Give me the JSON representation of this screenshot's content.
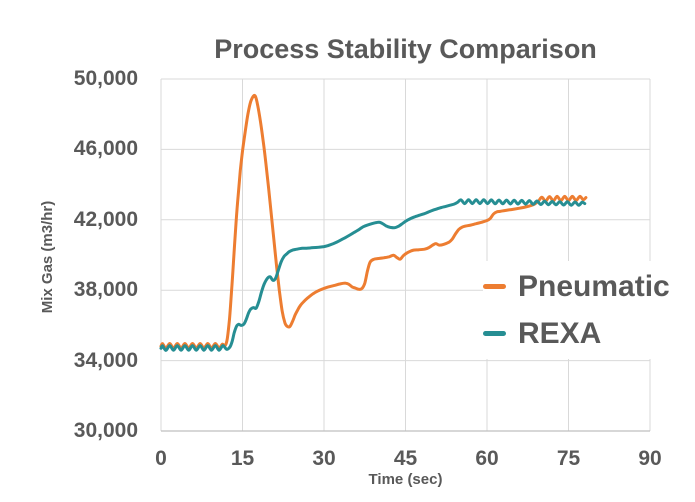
{
  "colors": {
    "background": "#FFFFFF",
    "text": "#595959",
    "grid": "#D9D9D9",
    "axis": "#BFBFBF",
    "pneumatic": "#ED7D31",
    "rexa": "#268E93"
  },
  "chart_data": {
    "type": "line",
    "title": "Process Stability Comparison",
    "xlabel": "Time (sec)",
    "ylabel": "Mix Gas (m3/hr)",
    "xlim": [
      0,
      90
    ],
    "ylim": [
      30000,
      50000
    ],
    "grid": true,
    "legend_position": "right-middle-inside",
    "x_ticks": [
      0,
      15,
      30,
      45,
      60,
      75,
      90
    ],
    "x_tick_labels": [
      "0",
      "15",
      "30",
      "45",
      "60",
      "75",
      "90"
    ],
    "y_ticks": [
      30000,
      34000,
      38000,
      42000,
      46000,
      50000
    ],
    "y_tick_labels": [
      "30,000",
      "34,000",
      "38,000",
      "42,000",
      "46,000",
      "50,000"
    ],
    "series": [
      {
        "name": "Pneumatic",
        "color": "#ED7D31",
        "points": [
          [
            0,
            34820
          ],
          [
            0.3,
            34960
          ],
          [
            0.9,
            34700
          ],
          [
            1.6,
            34970
          ],
          [
            2.3,
            34710
          ],
          [
            3,
            34970
          ],
          [
            3.7,
            34710
          ],
          [
            4.4,
            34970
          ],
          [
            5.1,
            34710
          ],
          [
            5.8,
            34970
          ],
          [
            6.5,
            34710
          ],
          [
            7.2,
            34970
          ],
          [
            7.9,
            34710
          ],
          [
            8.6,
            34970
          ],
          [
            9.3,
            34710
          ],
          [
            10,
            34970
          ],
          [
            10.7,
            34710
          ],
          [
            11.3,
            34930
          ],
          [
            11.8,
            34850
          ],
          [
            12.2,
            35250
          ],
          [
            12.6,
            36350
          ],
          [
            13,
            38000
          ],
          [
            13.4,
            39900
          ],
          [
            13.8,
            41800
          ],
          [
            14.2,
            43400
          ],
          [
            14.6,
            44800
          ],
          [
            15,
            45900
          ],
          [
            15.5,
            47000
          ],
          [
            16,
            48000
          ],
          [
            16.5,
            48700
          ],
          [
            17,
            49030
          ],
          [
            17.4,
            49000
          ],
          [
            17.8,
            48500
          ],
          [
            18.3,
            47600
          ],
          [
            18.8,
            46500
          ],
          [
            19.3,
            45200
          ],
          [
            19.8,
            43800
          ],
          [
            20.3,
            42300
          ],
          [
            20.8,
            40800
          ],
          [
            21.3,
            39300
          ],
          [
            21.8,
            37950
          ],
          [
            22.3,
            36800
          ],
          [
            22.8,
            36150
          ],
          [
            23.2,
            35950
          ],
          [
            23.7,
            35930
          ],
          [
            24.2,
            36220
          ],
          [
            24.7,
            36600
          ],
          [
            25.2,
            36900
          ],
          [
            25.7,
            37150
          ],
          [
            26.2,
            37330
          ],
          [
            27,
            37560
          ],
          [
            28,
            37800
          ],
          [
            29,
            37980
          ],
          [
            30,
            38100
          ],
          [
            31,
            38200
          ],
          [
            32,
            38280
          ],
          [
            33,
            38360
          ],
          [
            34,
            38400
          ],
          [
            34.6,
            38330
          ],
          [
            35.2,
            38180
          ],
          [
            35.8,
            38120
          ],
          [
            36.4,
            38050
          ],
          [
            37,
            38100
          ],
          [
            37.5,
            38400
          ],
          [
            38,
            39100
          ],
          [
            38.5,
            39600
          ],
          [
            39.2,
            39760
          ],
          [
            40,
            39800
          ],
          [
            41,
            39840
          ],
          [
            42,
            39900
          ],
          [
            42.8,
            39990
          ],
          [
            43.4,
            39860
          ],
          [
            44,
            39760
          ],
          [
            44.6,
            39960
          ],
          [
            45.2,
            40100
          ],
          [
            45.8,
            40200
          ],
          [
            46.5,
            40280
          ],
          [
            47.5,
            40300
          ],
          [
            48.5,
            40330
          ],
          [
            49.3,
            40420
          ],
          [
            50,
            40560
          ],
          [
            50.6,
            40650
          ],
          [
            51.2,
            40560
          ],
          [
            52,
            40600
          ],
          [
            53,
            40730
          ],
          [
            53.6,
            40900
          ],
          [
            54.2,
            41200
          ],
          [
            54.8,
            41450
          ],
          [
            55.4,
            41580
          ],
          [
            56,
            41640
          ],
          [
            57,
            41700
          ],
          [
            58,
            41780
          ],
          [
            59,
            41860
          ],
          [
            60,
            41960
          ],
          [
            60.6,
            42080
          ],
          [
            61.2,
            42330
          ],
          [
            61.8,
            42450
          ],
          [
            62.4,
            42480
          ],
          [
            63.2,
            42520
          ],
          [
            64,
            42560
          ],
          [
            65,
            42610
          ],
          [
            66,
            42660
          ],
          [
            67,
            42720
          ],
          [
            68,
            42800
          ],
          [
            68.8,
            42900
          ],
          [
            69.5,
            43080
          ],
          [
            70.1,
            43280
          ],
          [
            70.8,
            43060
          ],
          [
            71.5,
            43320
          ],
          [
            72.2,
            43080
          ],
          [
            72.9,
            43330
          ],
          [
            73.6,
            43090
          ],
          [
            74.3,
            43330
          ],
          [
            75,
            43090
          ],
          [
            75.7,
            43330
          ],
          [
            76.4,
            43100
          ],
          [
            77.1,
            43330
          ],
          [
            77.7,
            43140
          ],
          [
            78.2,
            43260
          ]
        ]
      },
      {
        "name": "REXA",
        "color": "#268E93",
        "points": [
          [
            0,
            34700
          ],
          [
            0.3,
            34840
          ],
          [
            0.9,
            34580
          ],
          [
            1.6,
            34850
          ],
          [
            2.3,
            34590
          ],
          [
            3,
            34850
          ],
          [
            3.7,
            34590
          ],
          [
            4.4,
            34850
          ],
          [
            5.1,
            34590
          ],
          [
            5.8,
            34850
          ],
          [
            6.5,
            34590
          ],
          [
            7.2,
            34850
          ],
          [
            7.9,
            34590
          ],
          [
            8.6,
            34850
          ],
          [
            9.3,
            34590
          ],
          [
            10,
            34850
          ],
          [
            10.7,
            34590
          ],
          [
            11.4,
            34850
          ],
          [
            12.1,
            34640
          ],
          [
            12.7,
            34780
          ],
          [
            13.1,
            35100
          ],
          [
            13.5,
            35600
          ],
          [
            13.9,
            35950
          ],
          [
            14.3,
            36060
          ],
          [
            14.8,
            36000
          ],
          [
            15.3,
            36090
          ],
          [
            15.7,
            36350
          ],
          [
            16.1,
            36700
          ],
          [
            16.5,
            36920
          ],
          [
            17,
            37010
          ],
          [
            17.5,
            36980
          ],
          [
            18,
            37350
          ],
          [
            18.5,
            37900
          ],
          [
            19,
            38350
          ],
          [
            19.6,
            38680
          ],
          [
            20.1,
            38760
          ],
          [
            20.6,
            38560
          ],
          [
            21.1,
            38680
          ],
          [
            21.6,
            39150
          ],
          [
            22.1,
            39600
          ],
          [
            22.6,
            39900
          ],
          [
            23.1,
            40050
          ],
          [
            23.6,
            40190
          ],
          [
            24.3,
            40290
          ],
          [
            25,
            40330
          ],
          [
            26,
            40380
          ],
          [
            27,
            40390
          ],
          [
            28,
            40420
          ],
          [
            29,
            40440
          ],
          [
            30,
            40480
          ],
          [
            30.8,
            40540
          ],
          [
            31.6,
            40630
          ],
          [
            32.4,
            40740
          ],
          [
            33.2,
            40870
          ],
          [
            34,
            41000
          ],
          [
            34.8,
            41140
          ],
          [
            35.6,
            41290
          ],
          [
            36.4,
            41440
          ],
          [
            37.2,
            41600
          ],
          [
            38,
            41700
          ],
          [
            38.8,
            41780
          ],
          [
            39.6,
            41840
          ],
          [
            40.2,
            41860
          ],
          [
            40.8,
            41780
          ],
          [
            41.5,
            41640
          ],
          [
            42.2,
            41570
          ],
          [
            43,
            41550
          ],
          [
            43.8,
            41650
          ],
          [
            44.5,
            41800
          ],
          [
            45.2,
            41950
          ],
          [
            46,
            42080
          ],
          [
            46.8,
            42180
          ],
          [
            47.6,
            42260
          ],
          [
            48.4,
            42340
          ],
          [
            49.2,
            42440
          ],
          [
            50,
            42540
          ],
          [
            50.8,
            42620
          ],
          [
            51.6,
            42700
          ],
          [
            52.4,
            42760
          ],
          [
            53.2,
            42830
          ],
          [
            54,
            42900
          ],
          [
            54.6,
            43000
          ],
          [
            55.2,
            43130
          ],
          [
            55.9,
            42920
          ],
          [
            56.6,
            43140
          ],
          [
            57.3,
            42920
          ],
          [
            58,
            43140
          ],
          [
            58.7,
            42920
          ],
          [
            59.4,
            43140
          ],
          [
            60.1,
            42920
          ],
          [
            60.8,
            43130
          ],
          [
            61.5,
            42910
          ],
          [
            62.2,
            43120
          ],
          [
            62.9,
            42910
          ],
          [
            63.6,
            43120
          ],
          [
            64.3,
            42900
          ],
          [
            65,
            43110
          ],
          [
            65.7,
            42900
          ],
          [
            66.4,
            43100
          ],
          [
            67.1,
            42890
          ],
          [
            67.8,
            43090
          ],
          [
            68.5,
            42880
          ],
          [
            69.2,
            43070
          ],
          [
            69.9,
            42870
          ],
          [
            70.6,
            43050
          ],
          [
            71.3,
            42860
          ],
          [
            72,
            43040
          ],
          [
            72.7,
            42850
          ],
          [
            73.4,
            43030
          ],
          [
            74.1,
            42840
          ],
          [
            74.8,
            43020
          ],
          [
            75.5,
            42830
          ],
          [
            76.2,
            43010
          ],
          [
            76.9,
            42830
          ],
          [
            77.5,
            43000
          ],
          [
            78,
            42920
          ]
        ]
      }
    ]
  }
}
